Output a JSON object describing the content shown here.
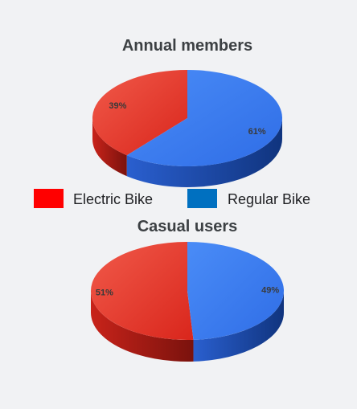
{
  "legend": {
    "placement": "between-charts",
    "items": [
      {
        "name": "Electric Bike",
        "color": "#ff0000"
      },
      {
        "name": "Regular Bike",
        "color": "#0070c0"
      }
    ]
  },
  "chart_data": [
    {
      "type": "pie",
      "style": "3d",
      "title": "Annual members",
      "labels": [
        "Electric Bike",
        "Regular Bike"
      ],
      "values": [
        39,
        61
      ],
      "value_labels": [
        "39%",
        "61%"
      ],
      "colors": [
        "#e8392f",
        "#3d7df0"
      ]
    },
    {
      "type": "pie",
      "style": "3d",
      "title": "Casual users",
      "labels": [
        "Electric Bike",
        "Regular Bike"
      ],
      "values": [
        51,
        49
      ],
      "value_labels": [
        "51%",
        "49%"
      ],
      "colors": [
        "#e8392f",
        "#3d7df0"
      ]
    }
  ]
}
